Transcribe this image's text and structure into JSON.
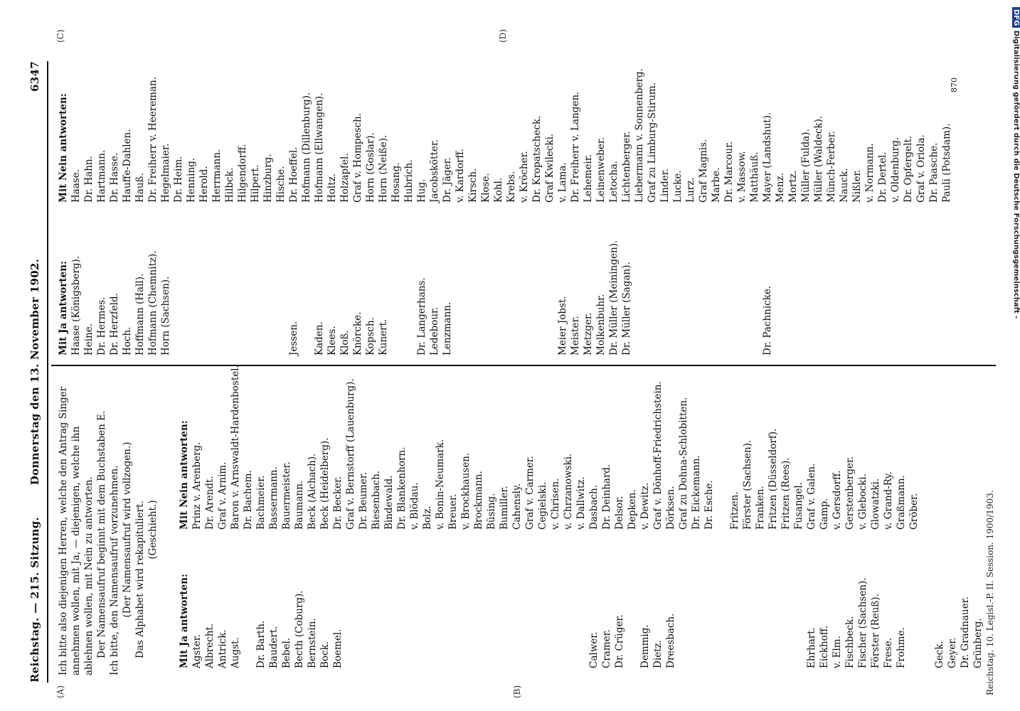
{
  "header": {
    "left": "Reichstag. — 215. Sitzung.",
    "center": "Donnerstag den 13. November 1902.",
    "right": "6347"
  },
  "markers": [
    "(A)",
    "(B)",
    "(C)",
    "(D)"
  ],
  "intro": [
    "Ich bitte also diejenigen Herren, welche den Antrag Singer annehmen wollen, mit Ja, — diejenigen, welche ihn ablehnen wollen, mit Nein zu antworten.",
    "Der Namensaufruf beginnt mit dem Buchstaben E.",
    "Ich bitte, den Namensaufruf vorzunehmen.",
    "(Der Namensaufruf wird vollzogen.)",
    "Das Alphabet wird rekapituliert.",
    "(Geschieht.)"
  ],
  "left": {
    "ja_heading": "Mit Ja antworten:",
    "ja": [
      "Agster.",
      "Albrecht.",
      "Antrick.",
      "Augst.",
      "",
      "Dr. Barth.",
      "Baudert.",
      "Bebel.",
      "Becth (Coburg).",
      "Bernstein.",
      "Bock.",
      "Boemel.",
      "",
      "",
      "",
      "",
      "",
      "",
      "",
      "",
      "",
      "",
      "",
      "",
      "",
      "",
      "",
      "",
      "",
      "",
      "",
      "Calwer.",
      "Cramer.",
      "Dr. Crüger.",
      "",
      "Demmig.",
      "Dietz.",
      "Dreesbach.",
      "",
      "",
      "",
      "",
      "",
      "",
      "",
      "",
      "",
      "",
      "Ehrhart.",
      "Eickhoff.",
      "v. Elm.",
      "Fischbeck.",
      "Fischer (Sachsen).",
      "Förster (Reuß).",
      "Frese.",
      "Frohme.",
      "",
      "",
      "Geck.",
      "Geyer.",
      "Dr. Gradnauer.",
      "Grünberg."
    ],
    "nein_heading": "Mit Nein antworten:",
    "nein": [
      "Prinz v. Arenberg.",
      "Dr. Arendt.",
      "Graf v. Arnim.",
      "Baron v. Arnswaldt-Hardenbostel.",
      "Dr. Bachem.",
      "Bachmeier.",
      "Bassermann.",
      "Bauermeister.",
      "Baumann.",
      "Beck (Aichach).",
      "Beck (Heidelberg).",
      "Dr. Becker.",
      "Graf v. Bernstorff (Lauenburg).",
      "Dr. Beumer.",
      "Biesenbach.",
      "Bindewald.",
      "Dr. Blankenhorn.",
      "v. Blödau.",
      "Bolz.",
      "v. Bonin-Neumark.",
      "Breuer.",
      "v. Brockhausen.",
      "Brockmann.",
      "Büsing.",
      "Bumiller.",
      "Cahensly.",
      "Graf v. Carmer.",
      "Cegielski.",
      "v. Chrisen.",
      "v. Chrzanowski.",
      "v. Dallwitz.",
      "Dasbach.",
      "Dr. Deinhard.",
      "Delsor.",
      "Depken.",
      "v. Dewitz.",
      "Graf v. Dönhoff-Friedrichstein.",
      "Dörksen.",
      "Graf zu Dohna-Schlobitten.",
      "Dr. Eickemann.",
      "Dr. Esche.",
      "",
      "Fritzen.",
      "Förster (Sachsen).",
      "Franken.",
      "Fritzen (Düsseldorf).",
      "Fritzen (Rees).",
      "Fusangel.",
      "Graf v. Galen.",
      "Gamp.",
      "v. Gersdorff.",
      "Gerstenberger.",
      "v. Glebocki.",
      "Glowatzki.",
      "v. Grand-Ry.",
      "Graßmann.",
      "Gröber."
    ]
  },
  "right": {
    "ja_heading": "Mit Ja antworten:",
    "ja": [
      "Haase (Königsberg).",
      "Heine.",
      "Dr. Hermes.",
      "Dr. Herzfeld.",
      "Hoch.",
      "Hoffmann (Hall).",
      "Hofmann (Chemnitz).",
      "Horn (Sachsen).",
      "",
      "",
      "",
      "",
      "",
      "",
      "",
      "",
      "",
      "Jessen.",
      "",
      "Kaden.",
      "Klees.",
      "Kloß.",
      "Knörcke.",
      "Kopsch.",
      "Kunert.",
      "",
      "",
      "Dr. Langerhans.",
      "Ledebour.",
      "Lenzmann.",
      "",
      "",
      "",
      "",
      "",
      "",
      "",
      "",
      "Meier Jobst.",
      "Meister.",
      "Metzger.",
      "Molkenbuhr.",
      "Dr. Müller (Meiningen).",
      "Dr. Müller (Sagan).",
      "",
      "",
      "",
      "",
      "",
      "",
      "",
      "",
      "",
      "",
      "Dr. Pachnicke."
    ],
    "nein_heading": "Mit Nein antworten:",
    "nein": [
      "Haase.",
      "Dr. Hahn.",
      "Hartmann.",
      "Dr. Hasse.",
      "Hauffe-Dahlen.",
      "Hauß.",
      "Dr. Freiherr v. Heereman.",
      "Hegelmaier.",
      "Dr. Heim.",
      "Henning.",
      "Herold.",
      "Herrmann.",
      "Hilbck.",
      "Hilgendorff.",
      "Hilpert.",
      "Hinzburg.",
      "Hische.",
      "Dr. Hoeffel.",
      "Hofmann (Dillenburg).",
      "Hofmann (Ellwangen).",
      "Holtz.",
      "Holzapfel.",
      "Graf v. Hompesch.",
      "Horn (Goslar).",
      "Horn (Neiße).",
      "Hosang.",
      "Hubrich.",
      "Hug.",
      "Jacobskötter.",
      "Dr. Jäger.",
      "v. Kardorff.",
      "Kirsch.",
      "Klose.",
      "Kohl.",
      "Krebs.",
      "v. Kröcher.",
      "Dr. Kropatscheck.",
      "Graf Kwilecki.",
      "v. Lama.",
      "Dr. Freiherr v. Langen.",
      "Lehemeir.",
      "Leinenweber.",
      "Letocha.",
      "Lichtenberger.",
      "Liebermann v. Sonnenberg.",
      "Graf zu Limburg-Stirum.",
      "Linder.",
      "Lucke.",
      "Lurz.",
      "Graf Magnis.",
      "Marbe.",
      "Dr. Marcour.",
      "v. Massow.",
      "Matthäuß.",
      "Mayer (Landshut).",
      "Menz.",
      "Mortz.",
      "Müller (Fulda).",
      "Müller (Waldeck).",
      "Münch-Ferber.",
      "Nauck.",
      "Nißler.",
      "v. Normann.",
      "Dr. Dertel.",
      "v. Oldenburg.",
      "Dr. Opfergelt.",
      "Graf v. Oriola.",
      "Dr. Paasche.",
      "Pauli (Potsdam)."
    ]
  },
  "signature_number": "870",
  "footer": "Reichstag. 10. Legisl.-P. II. Session. 1900/1903.",
  "side_credit": "Digitalisierung gefördert durch die Deutsche Forschungsgemeinschaft -",
  "side_logo": "DFG"
}
